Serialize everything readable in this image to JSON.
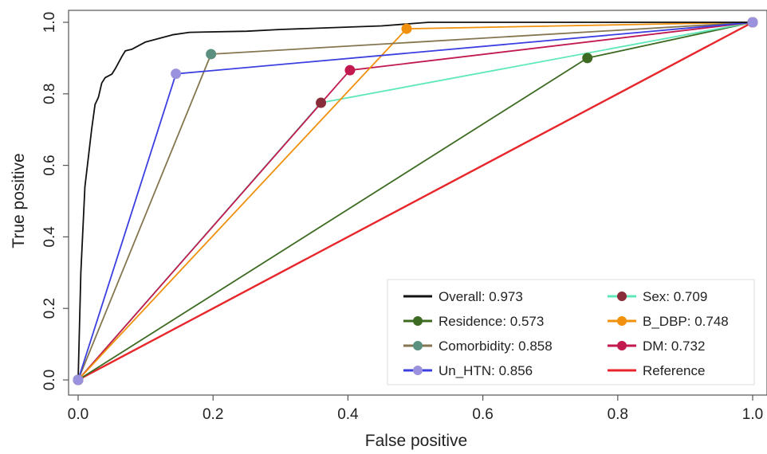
{
  "chart_data": {
    "type": "line",
    "xlabel": "False positive",
    "ylabel": "True positive",
    "xlim": [
      0,
      1
    ],
    "ylim": [
      0,
      1
    ],
    "x_ticks": [
      {
        "v": 0,
        "label": "0.0"
      },
      {
        "v": 0.2,
        "label": "0.2"
      },
      {
        "v": 0.4,
        "label": "0.4"
      },
      {
        "v": 0.6,
        "label": "0.6"
      },
      {
        "v": 0.8,
        "label": "0.8"
      },
      {
        "v": 1,
        "label": "1.0"
      }
    ],
    "y_ticks": [
      {
        "v": 0,
        "label": "0.0"
      },
      {
        "v": 0.2,
        "label": "0.2"
      },
      {
        "v": 0.4,
        "label": "0.4"
      },
      {
        "v": 0.6,
        "label": "0.6"
      },
      {
        "v": 0.8,
        "label": "0.8"
      },
      {
        "v": 1,
        "label": "1.0"
      }
    ],
    "grid": false,
    "legend_position": "bottom-right",
    "series": [
      {
        "key": "reference",
        "legend": "Reference",
        "color": "#e8252a",
        "markers": false,
        "points": [
          [
            0,
            0
          ],
          [
            1,
            1
          ]
        ]
      },
      {
        "key": "residence",
        "legend": "Residence: 0.573",
        "color": "#3e6b23",
        "markers": true,
        "points": [
          [
            0,
            0
          ],
          [
            0.755,
            0.9
          ],
          [
            1,
            1
          ]
        ]
      },
      {
        "key": "sex",
        "legend": "Sex: 0.709",
        "color": "#5ee8b8",
        "marker_color": "#8a2d3a",
        "markers": true,
        "points": [
          [
            0,
            0
          ],
          [
            0.36,
            0.775
          ],
          [
            1,
            1
          ]
        ]
      },
      {
        "key": "dm",
        "legend": "DM: 0.732",
        "color": "#c21a4e",
        "markers": true,
        "points": [
          [
            0,
            0
          ],
          [
            0.403,
            0.866
          ],
          [
            1,
            1
          ]
        ]
      },
      {
        "key": "b_dbp",
        "legend": "B_DBP: 0.748",
        "color": "#f0900c",
        "markers": true,
        "points": [
          [
            0,
            0
          ],
          [
            0.487,
            0.982
          ],
          [
            1,
            1
          ]
        ]
      },
      {
        "key": "comorbidity",
        "legend": "Comorbidity: 0.858",
        "color": "#857650",
        "marker_color": "#5b9080",
        "markers": true,
        "points": [
          [
            0,
            0
          ],
          [
            0.197,
            0.911
          ],
          [
            1,
            1
          ]
        ]
      },
      {
        "key": "un_htn",
        "legend": "Un_HTN: 0.856",
        "color": "#3b3fe0",
        "marker_color": "#9a92de",
        "markers": true,
        "points": [
          [
            0,
            0
          ],
          [
            0.145,
            0.856
          ],
          [
            1,
            1
          ]
        ]
      },
      {
        "key": "overall",
        "legend": "Overall: 0.973",
        "color": "#111111",
        "markers": false,
        "points": [
          [
            0,
            0
          ],
          [
            0.004,
            0.3
          ],
          [
            0.01,
            0.54
          ],
          [
            0.015,
            0.62
          ],
          [
            0.02,
            0.7
          ],
          [
            0.025,
            0.77
          ],
          [
            0.03,
            0.79
          ],
          [
            0.035,
            0.83
          ],
          [
            0.04,
            0.845
          ],
          [
            0.05,
            0.855
          ],
          [
            0.055,
            0.87
          ],
          [
            0.065,
            0.905
          ],
          [
            0.07,
            0.92
          ],
          [
            0.08,
            0.925
          ],
          [
            0.09,
            0.935
          ],
          [
            0.1,
            0.945
          ],
          [
            0.12,
            0.955
          ],
          [
            0.14,
            0.965
          ],
          [
            0.165,
            0.972
          ],
          [
            0.25,
            0.975
          ],
          [
            0.3,
            0.98
          ],
          [
            0.45,
            0.99
          ],
          [
            0.52,
            1.0
          ],
          [
            0.7,
            1.0
          ],
          [
            1,
            1
          ]
        ]
      }
    ],
    "legend_columns": [
      [
        "overall",
        "residence",
        "comorbidity",
        "un_htn"
      ],
      [
        "sex",
        "b_dbp",
        "dm",
        "reference"
      ]
    ]
  }
}
